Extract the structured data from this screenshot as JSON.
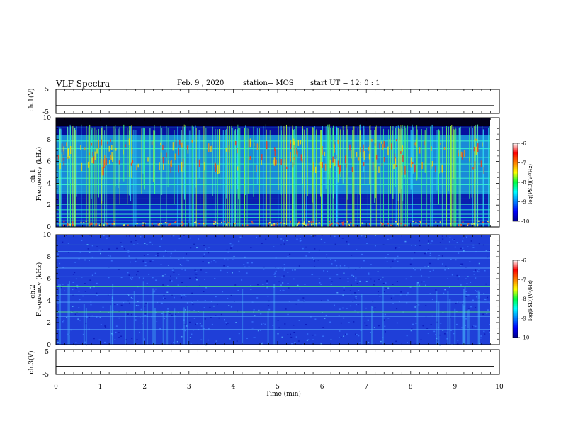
{
  "header": {
    "title": "VLF Spectra",
    "date": "Feb. 9 , 2020",
    "station": "station= MOS",
    "start": "start UT =  12: 0  : 1"
  },
  "colors": {
    "bg": "#ffffff",
    "axis": "#000000"
  },
  "chart_data": [
    {
      "type": "line",
      "ylabel": "ch.1(V)",
      "ylim": [
        -5,
        5
      ],
      "yticks": [
        "5",
        "-5"
      ],
      "xlim": [
        0,
        10
      ],
      "x": [
        0,
        10
      ],
      "values": [
        -1.8,
        -1.8
      ]
    },
    {
      "type": "heatmap",
      "ylabel_line1": "ch.1",
      "ylabel_line2": "Frequency (kHz)",
      "ylim": [
        0,
        10
      ],
      "yticks": [
        "0",
        "2",
        "4",
        "6",
        "8",
        "10"
      ],
      "xlim": [
        0,
        10
      ],
      "colorbar": {
        "label": "log(PSD)(V²/Hz)",
        "range": [
          -10,
          -6
        ],
        "ticks": [
          "-6",
          "-7",
          "-8",
          "-9",
          "-10"
        ]
      }
    },
    {
      "type": "heatmap",
      "ylabel_line1": "ch.2",
      "ylabel_line2": "Frequency (kHz)",
      "ylim": [
        0,
        10
      ],
      "yticks": [
        "0",
        "2",
        "4",
        "6",
        "8",
        "10"
      ],
      "xlim": [
        0,
        10
      ],
      "colorbar": {
        "label": "log(PSD)(V²/Hz)",
        "range": [
          -10,
          -6
        ],
        "ticks": [
          "-6",
          "-7",
          "-8",
          "-9",
          "-10"
        ]
      }
    },
    {
      "type": "line",
      "ylabel": "ch.3(V)",
      "ylim": [
        -5,
        5
      ],
      "yticks": [
        "5",
        "-5"
      ],
      "xlim": [
        0,
        10
      ],
      "x": [
        0,
        10
      ],
      "values": [
        -1.8,
        -1.8
      ],
      "xlabel": "Time (min)",
      "xticks": [
        "0",
        "1",
        "2",
        "3",
        "4",
        "5",
        "6",
        "7",
        "8",
        "9",
        "10"
      ]
    }
  ]
}
